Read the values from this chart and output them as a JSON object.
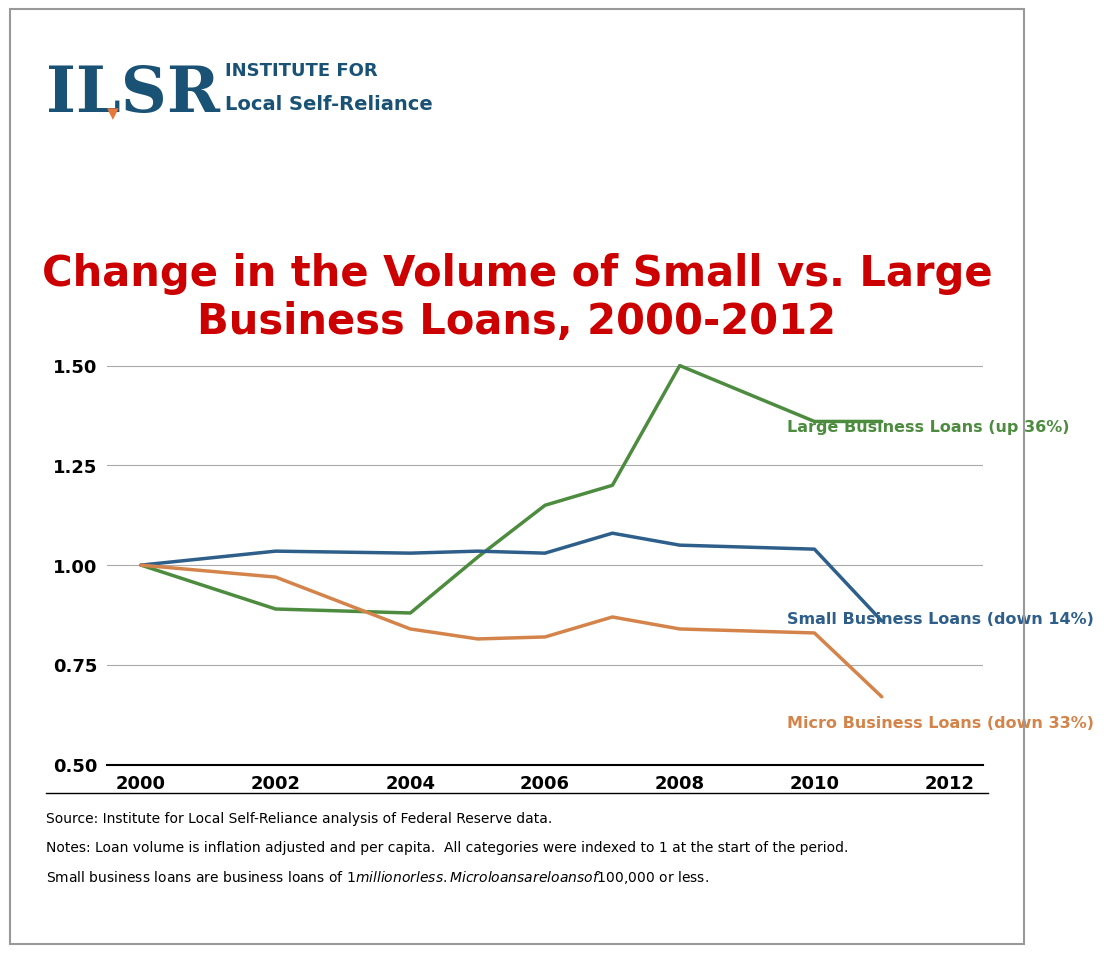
{
  "title_line1": "Change in the Volume of Small vs. Large",
  "title_line2": "Business Loans, 2000-2012",
  "title_color": "#cc0000",
  "title_fontsize": 30,
  "years": [
    2000,
    2002,
    2004,
    2005,
    2006,
    2007,
    2008,
    2010,
    2011
  ],
  "large_loans": [
    1.0,
    0.89,
    0.88,
    1.02,
    1.15,
    1.2,
    1.5,
    1.36,
    1.36
  ],
  "large_color": "#4d8c3f",
  "large_label": "Large Business Loans (up 36%)",
  "small_loans": [
    1.0,
    1.035,
    1.03,
    1.035,
    1.03,
    1.08,
    1.05,
    1.04,
    0.86
  ],
  "small_color": "#2e5f8a",
  "small_label": "Small Business Loans (down 14%)",
  "micro_loans": [
    1.0,
    0.97,
    0.84,
    0.815,
    0.82,
    0.87,
    0.84,
    0.83,
    0.67
  ],
  "micro_color": "#d4844a",
  "micro_label": "Micro Business Loans (down 33%)",
  "xlim": [
    1999.5,
    2012.5
  ],
  "ylim": [
    0.5,
    1.6
  ],
  "yticks": [
    0.5,
    0.75,
    1.0,
    1.25,
    1.5
  ],
  "xticks": [
    2000,
    2002,
    2004,
    2006,
    2008,
    2010,
    2012
  ],
  "source_line1": "Source: Institute for Local Self-Reliance analysis of Federal Reserve data.",
  "source_line2": "Notes: Loan volume is inflation adjusted and per capita.  All categories were indexed to 1 at the start of the period.",
  "source_line3": "Small business loans are business loans of $1 million or less. Microloans are loans of $100,000 or less.",
  "line_width": 2.5,
  "logo_ilsr_color": "#1a5276",
  "logo_orange_color": "#e8773a",
  "logo_institute": "INSTITUTE FOR",
  "logo_lsr": "Local Self-Reliance",
  "bg_color": "#ffffff",
  "border_color": "#999999"
}
